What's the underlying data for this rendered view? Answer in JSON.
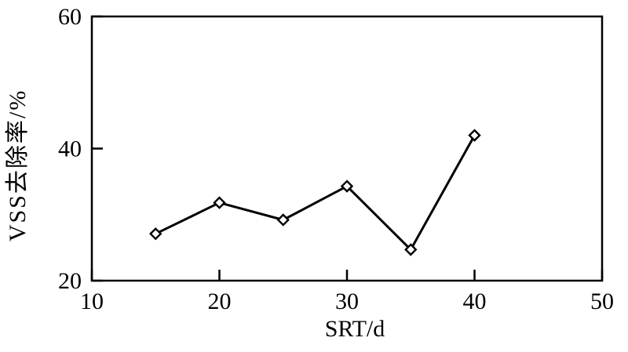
{
  "figure": {
    "background": "#ffffff"
  },
  "chart_data": {
    "type": "line",
    "title": "",
    "xlabel": "SRT/d",
    "ylabel": "VSS去除率/%",
    "x": [
      15,
      20,
      25,
      30,
      35,
      40
    ],
    "y": [
      27.1,
      31.8,
      29.2,
      34.3,
      24.7,
      42.0
    ],
    "xlim": [
      10,
      50
    ],
    "ylim": [
      20,
      60
    ],
    "x_ticks": [
      10,
      20,
      30,
      40,
      50
    ],
    "y_ticks": [
      20,
      40,
      60
    ],
    "marker": "open-diamond",
    "line_color": "#000000",
    "marker_fill": "#ffffff",
    "background": "#ffffff",
    "grid": false,
    "legend": "none"
  }
}
